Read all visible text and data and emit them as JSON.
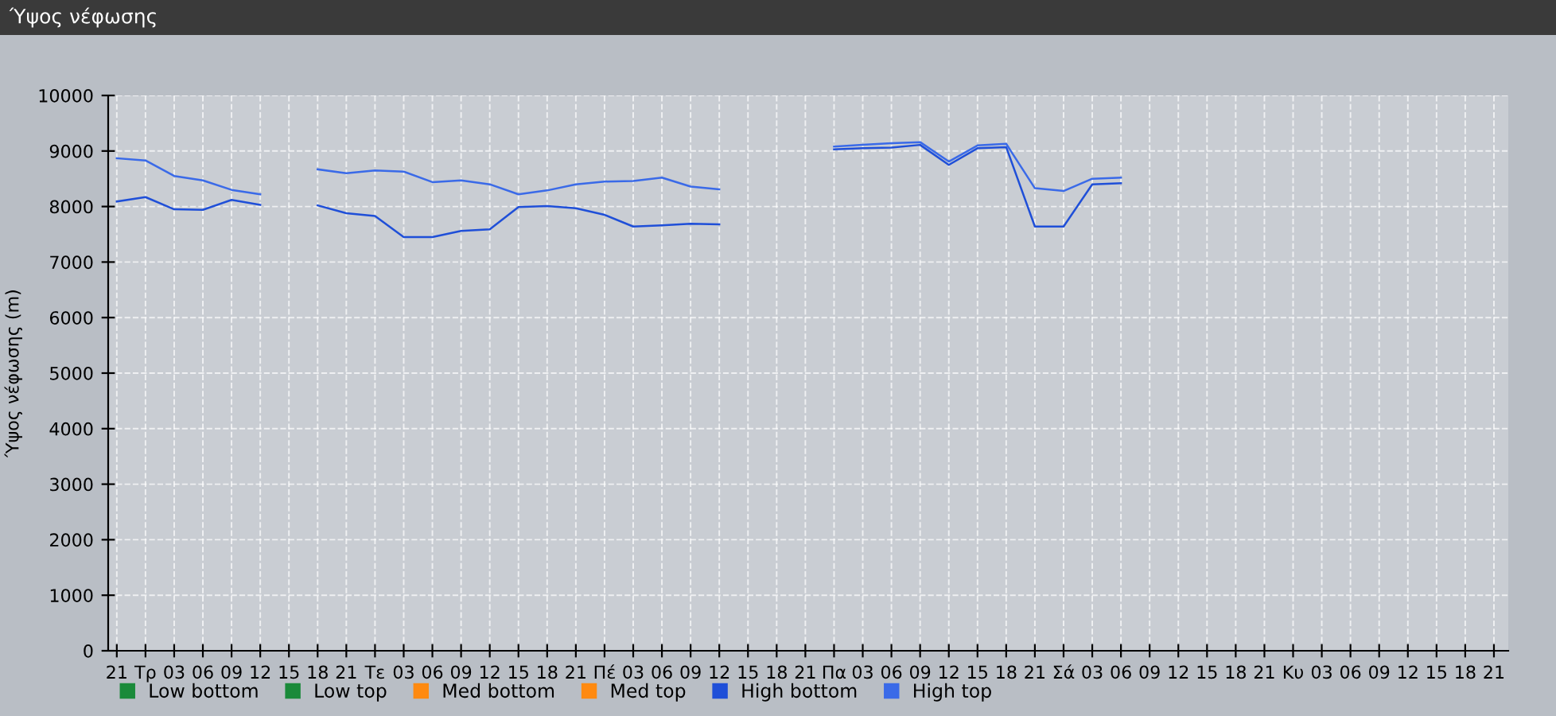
{
  "chart_data": {
    "type": "line",
    "title": "Ύψος νέφωσης",
    "ylabel": "Ύψος νέφωσης (m)",
    "categories": [
      "21",
      "Τρ",
      "03",
      "06",
      "09",
      "12",
      "15",
      "18",
      "21",
      "Τε",
      "03",
      "06",
      "09",
      "12",
      "15",
      "18",
      "21",
      "Πέ",
      "03",
      "06",
      "09",
      "12",
      "15",
      "18",
      "21",
      "Πα",
      "03",
      "06",
      "09",
      "12",
      "15",
      "18",
      "21",
      "Σά",
      "03",
      "06",
      "09",
      "12",
      "15",
      "18",
      "21",
      "Κυ",
      "03",
      "06",
      "09",
      "12",
      "15",
      "18",
      "21"
    ],
    "ylim": [
      0,
      10000
    ],
    "yticks": [
      0,
      1000,
      2000,
      3000,
      4000,
      5000,
      6000,
      7000,
      8000,
      9000,
      10000
    ],
    "grid": true,
    "legend": "bottom left",
    "marker": "none",
    "line_style": "solid",
    "series": [
      {
        "name": "Low bottom",
        "color": "#1a8a3a",
        "values": [
          null,
          null,
          null,
          null,
          null,
          null,
          null,
          null,
          null,
          null,
          null,
          null,
          null,
          null,
          null,
          null,
          null,
          null,
          null,
          null,
          null,
          null,
          null,
          null,
          null,
          null,
          null,
          null,
          null,
          null,
          null,
          null,
          null,
          null,
          null,
          null,
          null,
          null,
          null,
          null,
          null,
          null,
          null,
          null,
          null,
          null,
          null,
          null,
          null
        ]
      },
      {
        "name": "Low top",
        "color": "#1a8a3a",
        "values": [
          null,
          null,
          null,
          null,
          null,
          null,
          null,
          null,
          null,
          null,
          null,
          null,
          null,
          null,
          null,
          null,
          null,
          null,
          null,
          null,
          null,
          null,
          null,
          null,
          null,
          null,
          null,
          null,
          null,
          null,
          null,
          null,
          null,
          null,
          null,
          null,
          null,
          null,
          null,
          null,
          null,
          null,
          null,
          null,
          null,
          null,
          null,
          null,
          null
        ]
      },
      {
        "name": "Med bottom",
        "color": "#ff8a10",
        "values": [
          null,
          null,
          null,
          null,
          null,
          null,
          null,
          null,
          null,
          null,
          null,
          null,
          null,
          null,
          null,
          null,
          null,
          null,
          null,
          null,
          null,
          null,
          null,
          null,
          null,
          null,
          null,
          null,
          null,
          null,
          null,
          null,
          null,
          null,
          null,
          null,
          null,
          null,
          null,
          null,
          null,
          null,
          null,
          null,
          null,
          null,
          null,
          null,
          null
        ]
      },
      {
        "name": "Med top",
        "color": "#ff8a10",
        "values": [
          null,
          null,
          null,
          null,
          null,
          null,
          null,
          null,
          null,
          null,
          null,
          null,
          null,
          null,
          null,
          null,
          null,
          null,
          null,
          null,
          null,
          null,
          null,
          null,
          null,
          null,
          null,
          null,
          null,
          null,
          null,
          null,
          null,
          null,
          null,
          null,
          null,
          null,
          null,
          null,
          null,
          null,
          null,
          null,
          null,
          null,
          null,
          null,
          null
        ]
      },
      {
        "name": "High bottom",
        "color": "#1f4fd8",
        "values": [
          8090,
          8170,
          7950,
          7940,
          8120,
          8030,
          null,
          8020,
          7880,
          7830,
          7450,
          7450,
          7560,
          7590,
          7990,
          8010,
          7970,
          7850,
          7640,
          7660,
          7690,
          7680,
          null,
          null,
          null,
          9030,
          9050,
          9060,
          9110,
          8750,
          9050,
          9070,
          7640,
          7640,
          8400,
          8420,
          null,
          null,
          null,
          null,
          null,
          null,
          null,
          null,
          null,
          null,
          null,
          null,
          null
        ]
      },
      {
        "name": "High top",
        "color": "#3a6ae8",
        "values": [
          8870,
          8830,
          8550,
          8470,
          8300,
          8220,
          null,
          8670,
          8600,
          8650,
          8630,
          8440,
          8470,
          8400,
          8220,
          8290,
          8400,
          8450,
          8460,
          8520,
          8360,
          8310,
          null,
          null,
          null,
          9080,
          9110,
          9140,
          9160,
          8810,
          9100,
          9130,
          8330,
          8280,
          8500,
          8520,
          null,
          null,
          null,
          null,
          null,
          null,
          null,
          null,
          null,
          null,
          null,
          null,
          null
        ]
      }
    ]
  }
}
